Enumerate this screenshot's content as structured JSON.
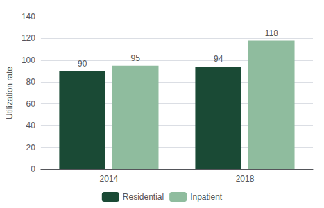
{
  "chart_data": {
    "type": "bar",
    "categories": [
      "2014",
      "2018"
    ],
    "series": [
      {
        "name": "Residential",
        "color": "#1a4a35",
        "values": [
          90,
          94
        ]
      },
      {
        "name": "Inpatient",
        "color": "#8fbc9e",
        "values": [
          95,
          118
        ]
      }
    ],
    "ylabel": "Utilization rate",
    "ylim": [
      0,
      140
    ],
    "yticks": [
      0,
      20,
      40,
      60,
      80,
      100,
      120,
      140
    ],
    "grid": true,
    "legend": "bottom",
    "data_labels": true
  }
}
